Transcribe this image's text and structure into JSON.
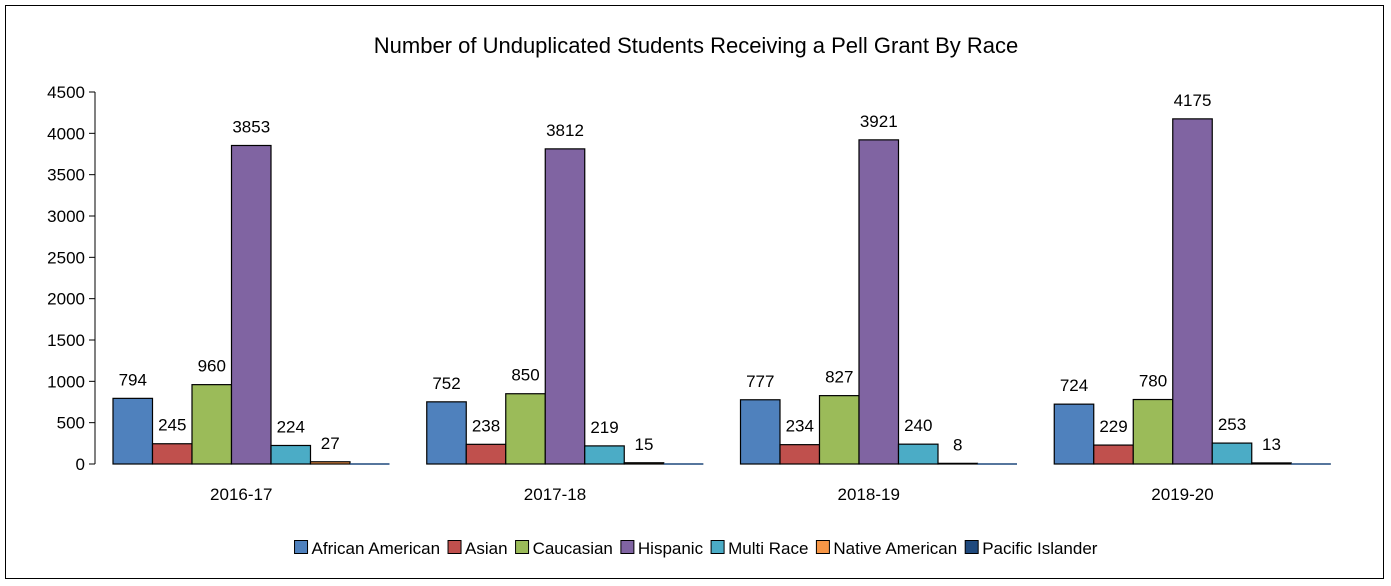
{
  "chart_data": {
    "type": "bar",
    "title": "Number of Unduplicated Students Receiving a Pell Grant By Race",
    "categories": [
      "2016-17",
      "2017-18",
      "2018-19",
      "2019-20"
    ],
    "ylim": [
      0,
      4500
    ],
    "yticks": [
      0,
      500,
      1000,
      1500,
      2000,
      2500,
      3000,
      3500,
      4000,
      4500
    ],
    "grid": false,
    "legend_position": "bottom",
    "series": [
      {
        "name": "African American",
        "color": "#4f81bd",
        "values": [
          794,
          752,
          777,
          724
        ],
        "labels": [
          "794",
          "752",
          "777",
          "724"
        ]
      },
      {
        "name": "Asian",
        "color": "#c0504d",
        "values": [
          245,
          238,
          234,
          229
        ],
        "labels": [
          "245",
          "238",
          "234",
          "229"
        ]
      },
      {
        "name": "Caucasian",
        "color": "#9bbb59",
        "values": [
          960,
          850,
          827,
          780
        ],
        "labels": [
          "960",
          "850",
          "827",
          "780"
        ]
      },
      {
        "name": "Hispanic",
        "color": "#8064a2",
        "values": [
          3853,
          3812,
          3921,
          4175
        ],
        "labels": [
          "3853",
          "3812",
          "3921",
          "4175"
        ]
      },
      {
        "name": "Multi Race",
        "color": "#4bacc6",
        "values": [
          224,
          219,
          240,
          253
        ],
        "labels": [
          "224",
          "219",
          "240",
          "253"
        ]
      },
      {
        "name": "Native American",
        "color": "#f79646",
        "values": [
          27,
          15,
          8,
          13
        ],
        "labels": [
          "27",
          "15",
          "8",
          "13"
        ]
      },
      {
        "name": "Pacific Islander",
        "color": "#1f497d",
        "values": [
          0,
          0,
          0,
          0
        ],
        "labels": [
          "",
          "",
          "",
          ""
        ]
      }
    ]
  }
}
